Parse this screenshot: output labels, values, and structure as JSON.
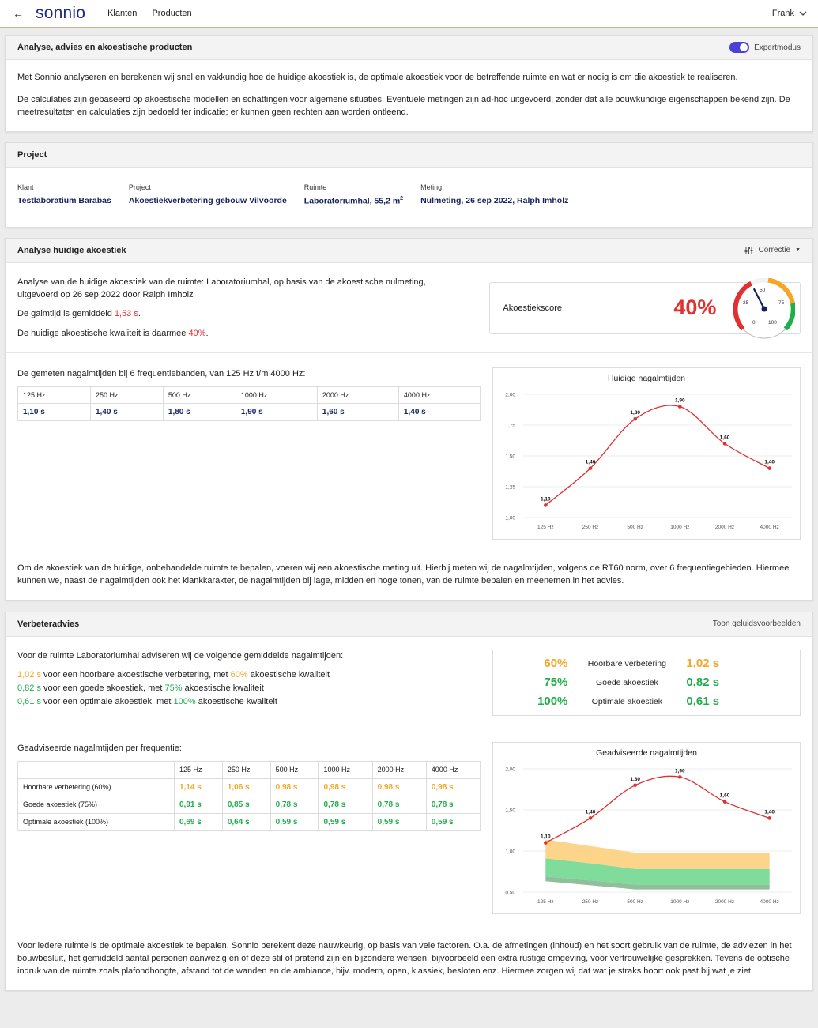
{
  "topbar": {
    "back_icon": "arrow-left-icon",
    "logo": "sonnio",
    "nav": [
      "Klanten",
      "Producten"
    ],
    "user": "Frank"
  },
  "colors": {
    "brand": "#1d2a8a",
    "navy": "#16215e",
    "red": "#e03030",
    "orange": "#f5a623",
    "green": "#1fae4a",
    "toggle": "#4b3fd6"
  },
  "intro": {
    "title": "Analyse, advies en akoestische producten",
    "expert_label": "Expertmodus",
    "expert_on": true,
    "p1": "Met Sonnio analyseren en berekenen wij snel en vakkundig hoe de huidige akoestiek is, de optimale akoestiek voor de betreffende ruimte en wat er nodig is om die akoestiek te realiseren.",
    "p2": "De calculaties zijn gebaseerd op akoestische modellen en schattingen voor algemene situaties. Eventuele metingen zijn ad-hoc uitgevoerd, zonder dat alle bouwkundige eigenschappen bekend zijn. De meetresultaten en calculaties zijn bedoeld ter indicatie; er kunnen geen rechten aan worden ontleend."
  },
  "project": {
    "title": "Project",
    "fields": [
      {
        "label": "Klant",
        "value": "Testlaboratium Barabas"
      },
      {
        "label": "Project",
        "value": "Akoestiekverbetering gebouw Vilvoorde"
      },
      {
        "label": "Ruimte",
        "value": "Laboratoriumhal, 55,2 m",
        "sup": "2"
      },
      {
        "label": "Meting",
        "value": "Nulmeting, 26 sep 2022, Ralph Imholz"
      }
    ]
  },
  "analysis": {
    "title": "Analyse huidige akoestiek",
    "correction_label": "Correctie",
    "line1": "Analyse van de huidige akoestiek van de ruimte: Laboratoriumhal, op basis van de akoestische nulmeting, uitgevoerd op 26 sep 2022 door Ralph Imholz",
    "galm_prefix": "De galmtijd is gemiddeld ",
    "galm_value": "1,53 s",
    "galm_suffix": ".",
    "quality_prefix": "De huidige akoestische kwaliteit is daarmee ",
    "quality_value": "40%",
    "quality_suffix": ".",
    "score_label": "Akoestiekscore",
    "score_value": "40%",
    "gauge_ticks": [
      "0",
      "25",
      "50",
      "75",
      "100"
    ],
    "gauge_value": 40,
    "measured_intro": "De gemeten nagalmtijden bij 6 frequentiebanden, van 125 Hz t/m 4000 Hz:",
    "bands": [
      "125 Hz",
      "250 Hz",
      "500 Hz",
      "1000 Hz",
      "2000 Hz",
      "4000 Hz"
    ],
    "band_values": [
      "1,10 s",
      "1,40 s",
      "1,80 s",
      "1,90 s",
      "1,60 s",
      "1,40 s"
    ],
    "footer": "Om de akoestiek van de huidige, onbehandelde ruimte te bepalen, voeren wij een akoestische meting uit. Hierbij meten wij de nagalmtijden, volgens de RT60 norm, over 6 frequentiegebieden. Hiermee kunnen we, naast de nagalmtijden ook het klankkarakter, de nagalmtijden bij lage, midden en hoge tonen, van de ruimte bepalen en meenemen in het advies."
  },
  "advice": {
    "title": "Verbeteradvies",
    "examples_label": "Toon geluidsvoorbeelden",
    "intro": "Voor de ruimte Laboratoriumhal adviseren wij de volgende gemiddelde nagalmtijden:",
    "lines": [
      {
        "sec": "1,02 s",
        "mid": " voor een hoorbare akoestische verbetering, met ",
        "pct": "60%",
        "end": " akoestische kwaliteit",
        "color": "#f5a623"
      },
      {
        "sec": "0,82 s",
        "mid": " voor een goede akoestiek, met ",
        "pct": "75%",
        "end": " akoestische kwaliteit",
        "color": "#1fae4a"
      },
      {
        "sec": "0,61 s",
        "mid": " voor een optimale akoestiek, met ",
        "pct": "100%",
        "end": " akoestische kwaliteit",
        "color": "#1fae4a"
      }
    ],
    "targets": [
      {
        "pct": "60%",
        "label": "Hoorbare verbetering",
        "sec": "1,02 s",
        "color": "#f5a623"
      },
      {
        "pct": "75%",
        "label": "Goede akoestiek",
        "sec": "0,82 s",
        "color": "#1fae4a"
      },
      {
        "pct": "100%",
        "label": "Optimale akoestiek",
        "sec": "0,61 s",
        "color": "#1fae4a"
      }
    ],
    "table_intro": "Geadviseerde nagalmtijden per frequentie:",
    "rows": [
      {
        "label": "Hoorbare verbetering (60%)",
        "values": [
          "1,14 s",
          "1,06 s",
          "0,98 s",
          "0,98 s",
          "0,98 s",
          "0,98 s"
        ],
        "color": "#f5a623"
      },
      {
        "label": "Goede akoestiek (75%)",
        "values": [
          "0,91 s",
          "0,85 s",
          "0,78 s",
          "0,78 s",
          "0,78 s",
          "0,78 s"
        ],
        "color": "#1fae4a"
      },
      {
        "label": "Optimale akoestiek (100%)",
        "values": [
          "0,69 s",
          "0,64 s",
          "0,59 s",
          "0,59 s",
          "0,59 s",
          "0,59 s"
        ],
        "color": "#1fae4a"
      }
    ],
    "footer": "Voor iedere ruimte is de optimale akoestiek te bepalen. Sonnio berekent deze nauwkeurig, op basis van vele factoren. O.a. de afmetingen (inhoud) en het soort gebruik van de ruimte, de adviezen in het bouwbesluit, het gemiddeld aantal personen aanwezig en of deze stil of pratend zijn en bijzondere wensen, bijvoorbeeld een extra rustige omgeving, voor vertrouwelijke gesprekken. Tevens de optische indruk van de ruimte zoals plafondhoogte, afstand tot de wanden en de ambiance, bijv. modern, open, klassiek, besloten enz. Hiermee zorgen wij dat wat je straks hoort ook past bij wat je ziet."
  },
  "chart_data": [
    {
      "type": "line",
      "title": "Huidige nagalmtijden",
      "categories": [
        "125 Hz",
        "250 Hz",
        "500 Hz",
        "1000 Hz",
        "2000 Hz",
        "4000 Hz"
      ],
      "series": [
        {
          "values": [
            1.1,
            1.4,
            1.8,
            1.9,
            1.6,
            1.4
          ],
          "color": "#e03030"
        }
      ],
      "data_labels": [
        "1,10",
        "1,40",
        "1,80",
        "1,90",
        "1,60",
        "1,40"
      ],
      "ylim": [
        1.0,
        2.0
      ],
      "yticks": [
        "1,00",
        "1,25",
        "1,50",
        "1,75",
        "2,00"
      ],
      "ytick_values": [
        1.0,
        1.25,
        1.5,
        1.75,
        2.0
      ]
    },
    {
      "type": "area",
      "title": "Geadviseerde nagalmtijden",
      "categories": [
        "125 Hz",
        "250 Hz",
        "500 Hz",
        "1000 Hz",
        "2000 Hz",
        "4000 Hz"
      ],
      "series": [
        {
          "values": [
            1.1,
            1.4,
            1.8,
            1.9,
            1.6,
            1.4
          ],
          "color": "#e03030",
          "kind": "line"
        },
        {
          "values": [
            1.14,
            1.06,
            0.98,
            0.98,
            0.98,
            0.98
          ],
          "color": "#fcd58a",
          "kind": "band"
        },
        {
          "values": [
            0.91,
            0.85,
            0.78,
            0.78,
            0.78,
            0.78
          ],
          "color": "#7fdc9b",
          "kind": "band"
        },
        {
          "values": [
            0.69,
            0.64,
            0.59,
            0.59,
            0.59,
            0.59
          ],
          "color": "#8fbf9b",
          "kind": "band"
        }
      ],
      "data_labels": [
        "1,10",
        "1,40",
        "1,80",
        "1,90",
        "1,60",
        "1,40"
      ],
      "ylim": [
        0.5,
        2.0
      ],
      "yticks": [
        "0,50",
        "1,00",
        "1,50",
        "2,00"
      ],
      "ytick_values": [
        0.5,
        1.0,
        1.5,
        2.0
      ]
    }
  ]
}
